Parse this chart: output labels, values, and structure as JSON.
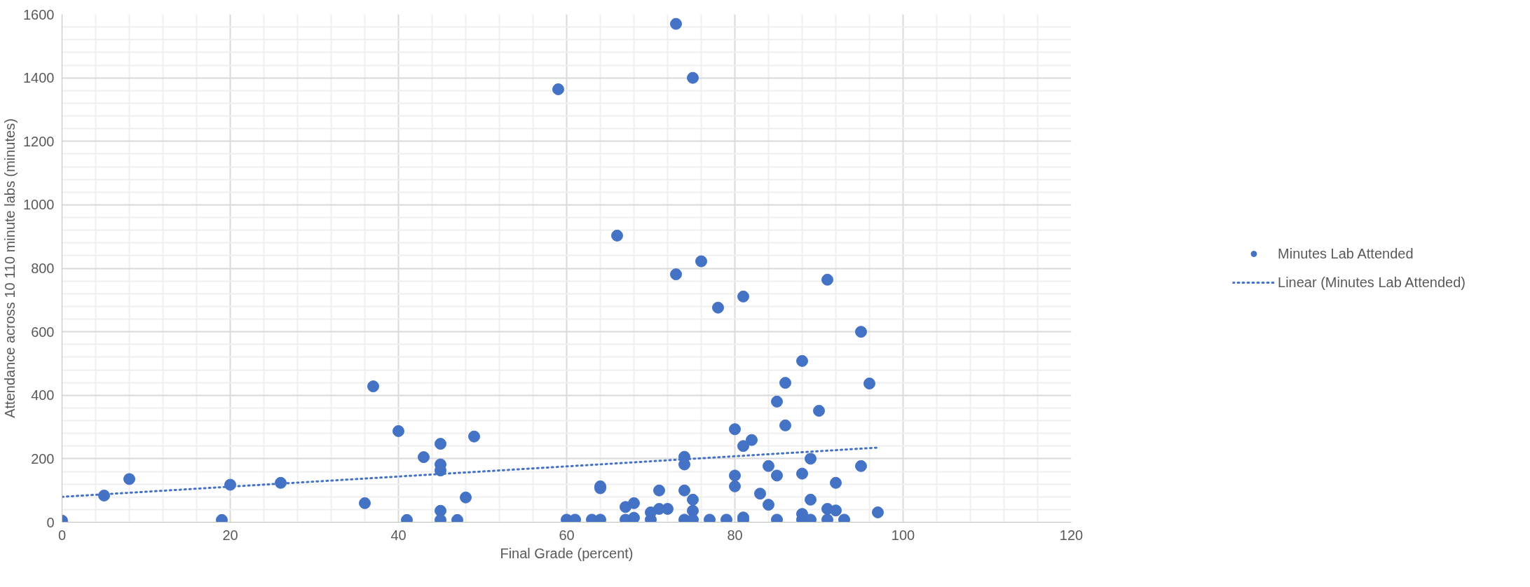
{
  "chart_data": {
    "type": "scatter",
    "xlabel": "Final Grade (percent)",
    "ylabel": "Attendance across 10 110 minute labs (minutes)",
    "xlim": [
      0,
      120
    ],
    "ylim": [
      0,
      1600
    ],
    "xticks": [
      0,
      20,
      40,
      60,
      80,
      100,
      120
    ],
    "yticks": [
      0,
      200,
      400,
      600,
      800,
      1000,
      1200,
      1400,
      1600
    ],
    "grid": true,
    "legend": "right",
    "marker": "circle",
    "series": [
      {
        "name": "Minutes Lab Attended",
        "color": "#4472c4",
        "x": [
          0,
          5,
          8,
          19,
          20,
          26,
          36,
          37,
          40,
          41,
          43,
          45,
          45,
          45,
          45,
          45,
          47,
          48,
          49,
          59,
          66,
          73,
          75,
          60,
          61,
          63,
          64,
          64,
          64,
          67,
          67,
          68,
          68,
          70,
          70,
          71,
          71,
          72,
          73,
          74,
          74,
          74,
          74,
          75,
          75,
          75,
          76,
          77,
          78,
          79,
          80,
          80,
          80,
          81,
          81,
          81,
          81,
          82,
          83,
          84,
          84,
          85,
          85,
          85,
          86,
          86,
          88,
          88,
          88,
          88,
          89,
          89,
          89,
          90,
          91,
          91,
          91,
          92,
          92,
          93,
          95,
          95,
          96,
          97
        ],
        "values": [
          5,
          84,
          136,
          7,
          118,
          124,
          60,
          428,
          287,
          7,
          205,
          247,
          182,
          163,
          36,
          7,
          7,
          78,
          270,
          1364,
          903,
          1570,
          1400,
          8,
          8,
          8,
          8,
          113,
          107,
          8,
          48,
          60,
          14,
          8,
          31,
          100,
          42,
          42,
          781,
          206,
          182,
          100,
          8,
          71,
          36,
          8,
          822,
          8,
          676,
          8,
          293,
          147,
          113,
          711,
          240,
          15,
          8,
          259,
          90,
          177,
          55,
          147,
          380,
          8,
          439,
          305,
          508,
          153,
          26,
          8,
          200,
          71,
          8,
          351,
          764,
          42,
          8,
          124,
          37,
          8,
          600,
          177,
          437,
          31
        ]
      },
      {
        "name": "Linear (Minutes Lab Attended)",
        "color": "#4472c4",
        "type": "line",
        "line_style": "dotted",
        "marker": "none",
        "x": [
          0,
          97
        ],
        "values": [
          80,
          235
        ]
      }
    ]
  }
}
